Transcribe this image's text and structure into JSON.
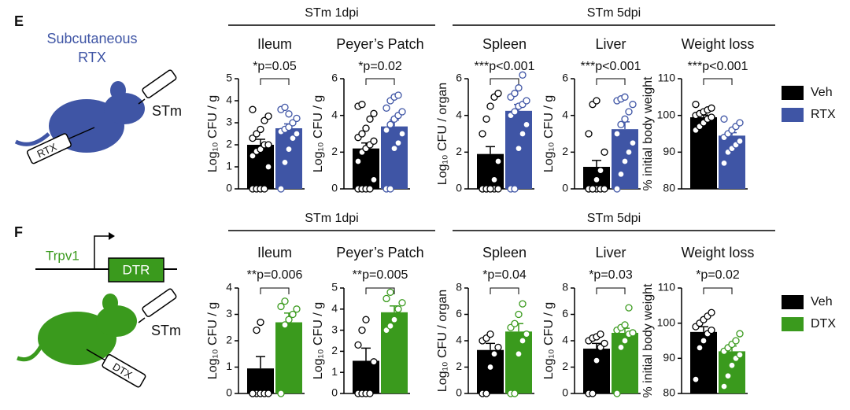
{
  "panels": [
    {
      "label": "E",
      "treatment": [
        "Subcutaneous",
        "RTX"
      ],
      "syringe": "RTX",
      "inoculum": "STm",
      "groups": [
        "STm 1dpi",
        "STm 5dpi"
      ],
      "legend": [
        {
          "name": "Veh",
          "color": "#000000"
        },
        {
          "name": "RTX",
          "color": "#3f55a5"
        }
      ]
    },
    {
      "label": "F",
      "gene": "Trpv1",
      "construct": "DTR",
      "syringe": "DTX",
      "inoculum": "STm",
      "groups": [
        "STm 1dpi",
        "STm 5dpi"
      ],
      "legend": [
        {
          "name": "Veh",
          "color": "#000000"
        },
        {
          "name": "DTX",
          "color": "#3a9a1d"
        }
      ]
    }
  ],
  "chart_data": [
    {
      "type": "bar",
      "title": "Ileum",
      "annotation": "*p=0.05",
      "y_label": "Log₁₀ CFU / g",
      "ylim": [
        0,
        5
      ],
      "yticks": [
        0,
        1,
        2,
        3,
        4,
        5
      ],
      "series": [
        {
          "values": [
            2.0
          ],
          "errors": [
            0.25
          ],
          "points": [
            0,
            0,
            0,
            0,
            1,
            1.5,
            1.7,
            1.8,
            2,
            2,
            2.3,
            2.5,
            2.7,
            3.1,
            3.3,
            3.6
          ]
        },
        {
          "values": [
            2.75
          ],
          "errors": [
            0.2
          ],
          "points": [
            0,
            1.2,
            1.8,
            2.3,
            2.5,
            2.6,
            2.7,
            2.8,
            3.0,
            3.2,
            3.6,
            3.7,
            3.4
          ]
        }
      ]
    },
    {
      "type": "bar",
      "title": "Peyer’s Patch",
      "annotation": "*p=0.02",
      "y_label": "Log₁₀ CFU / g",
      "ylim": [
        0,
        6
      ],
      "yticks": [
        0,
        2,
        4,
        6
      ],
      "series": [
        {
          "values": [
            2.2
          ],
          "errors": [
            0.3
          ],
          "points": [
            0,
            0,
            0,
            0,
            0.5,
            1.5,
            2,
            2.2,
            2.4,
            2.6,
            2.8,
            3,
            3.3,
            3.8,
            4.1,
            4.5,
            4.6
          ]
        },
        {
          "values": [
            3.4
          ],
          "errors": [
            0.35
          ],
          "points": [
            0,
            0,
            2.2,
            2.5,
            3,
            3.2,
            3.5,
            3.8,
            4,
            4.2,
            4.4,
            4.8,
            5,
            5.1
          ]
        }
      ]
    },
    {
      "type": "bar",
      "title": "Spleen",
      "annotation": "***p<0.001",
      "y_label": "Log₁₀ CFU / organ",
      "ylim": [
        0,
        6
      ],
      "yticks": [
        0,
        2,
        4,
        6
      ],
      "series": [
        {
          "values": [
            1.9
          ],
          "errors": [
            0.4
          ],
          "points": [
            0,
            0,
            0,
            0,
            0,
            0,
            0,
            0,
            0.5,
            1.5,
            3,
            3.8,
            4.5,
            5,
            5.2
          ]
        },
        {
          "values": [
            4.25
          ],
          "errors": [
            0.35
          ],
          "points": [
            0,
            0,
            2.2,
            3,
            3.5,
            4,
            4.2,
            4.5,
            4.6,
            4.8,
            5,
            5.2,
            5.5,
            6.2
          ]
        }
      ]
    },
    {
      "type": "bar",
      "title": "Liver",
      "annotation": "***p<0.001",
      "y_label": "Log₁₀ CFU / g",
      "ylim": [
        0,
        6
      ],
      "yticks": [
        0,
        2,
        4,
        6
      ],
      "series": [
        {
          "values": [
            1.2
          ],
          "errors": [
            0.35
          ],
          "points": [
            0,
            0,
            0,
            0,
            0,
            0,
            0,
            0.5,
            1,
            2,
            3,
            4.6,
            4.8
          ]
        },
        {
          "values": [
            3.25
          ],
          "errors": [
            0.4
          ],
          "points": [
            0,
            0.8,
            1.5,
            2,
            2.5,
            3,
            3.5,
            3.8,
            4.2,
            4.6,
            4.8,
            4.9,
            5
          ]
        }
      ]
    },
    {
      "type": "bar",
      "title": "Weight loss",
      "annotation": "***p<0.001",
      "y_label": "% initial body weight",
      "ylim": [
        80,
        110
      ],
      "yticks": [
        80,
        90,
        100,
        110
      ],
      "series": [
        {
          "values": [
            99.5
          ],
          "errors": [
            0.6
          ],
          "points": [
            96,
            97,
            98,
            99,
            99.5,
            100,
            100.5,
            101,
            101.5,
            102,
            103
          ]
        },
        {
          "values": [
            94.5
          ],
          "errors": [
            0.8
          ],
          "points": [
            87,
            90,
            91,
            92,
            93,
            94,
            95,
            96,
            97,
            98,
            99
          ]
        }
      ]
    },
    {
      "type": "bar",
      "title": "Ileum",
      "annotation": "**p=0.006",
      "y_label": "Log₁₀ CFU / g",
      "ylim": [
        0,
        4
      ],
      "yticks": [
        0,
        1,
        2,
        3,
        4
      ],
      "series": [
        {
          "values": [
            0.95
          ],
          "errors": [
            0.45
          ],
          "points": [
            0,
            0,
            0,
            0,
            0,
            0,
            2.4,
            2.7
          ]
        },
        {
          "values": [
            2.7
          ],
          "errors": [
            0.35
          ],
          "points": [
            0,
            2.6,
            2.8,
            3,
            3.2,
            3.3,
            3.5
          ]
        }
      ]
    },
    {
      "type": "bar",
      "title": "Peyer’s Patch",
      "annotation": "**p=0.005",
      "y_label": "Log₁₀ CFU / g",
      "ylim": [
        0,
        5
      ],
      "yticks": [
        0,
        1,
        2,
        3,
        4,
        5
      ],
      "series": [
        {
          "values": [
            1.55
          ],
          "errors": [
            0.6
          ],
          "points": [
            0,
            0,
            0,
            0,
            1.5,
            2.3,
            3,
            3.5
          ]
        },
        {
          "values": [
            3.85
          ],
          "errors": [
            0.3
          ],
          "points": [
            3,
            3.2,
            3.5,
            4,
            4.3,
            4.5,
            4.8
          ]
        }
      ]
    },
    {
      "type": "bar",
      "title": "Spleen",
      "annotation": "*p=0.04",
      "y_label": "Log₁₀ CFU / organ",
      "ylim": [
        0,
        8
      ],
      "yticks": [
        0,
        2,
        4,
        6,
        8
      ],
      "series": [
        {
          "values": [
            3.3
          ],
          "errors": [
            0.5
          ],
          "points": [
            0,
            0,
            2,
            3,
            3.5,
            4,
            4.2,
            4.5
          ]
        },
        {
          "values": [
            4.7
          ],
          "errors": [
            0.6
          ],
          "points": [
            0,
            0,
            3,
            4,
            4.5,
            5,
            5.3,
            6,
            6.8
          ]
        }
      ]
    },
    {
      "type": "bar",
      "title": "Liver",
      "annotation": "*p=0.03",
      "y_label": "Log₁₀ CFU / g",
      "ylim": [
        0,
        8
      ],
      "yticks": [
        0,
        2,
        4,
        6,
        8
      ],
      "series": [
        {
          "values": [
            3.4
          ],
          "errors": [
            0.4
          ],
          "points": [
            0,
            0,
            2.5,
            3.5,
            3.8,
            4,
            4.2,
            4.3,
            4.5
          ]
        },
        {
          "values": [
            4.6
          ],
          "errors": [
            0.35
          ],
          "points": [
            0,
            3.5,
            4,
            4.5,
            4.6,
            4.8,
            5,
            5.2,
            6.5
          ]
        }
      ]
    },
    {
      "type": "bar",
      "title": "Weight loss",
      "annotation": "*p=0.02",
      "y_label": "% initial body weight",
      "ylim": [
        80,
        110
      ],
      "yticks": [
        80,
        90,
        100,
        110
      ],
      "series": [
        {
          "values": [
            97.5
          ],
          "errors": [
            1.5
          ],
          "points": [
            84,
            93,
            95,
            97,
            98,
            99,
            100,
            101,
            102,
            103
          ]
        },
        {
          "values": [
            92
          ],
          "errors": [
            1.5
          ],
          "points": [
            82,
            85,
            88,
            90,
            91,
            92,
            93,
            94,
            95,
            97
          ]
        }
      ]
    }
  ]
}
